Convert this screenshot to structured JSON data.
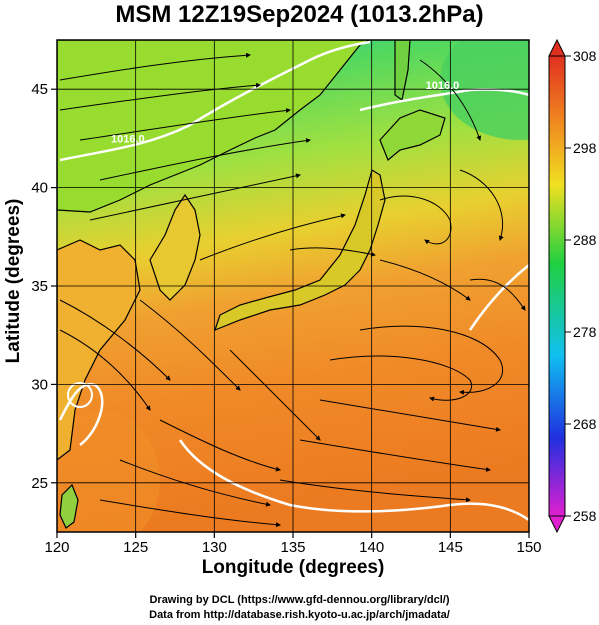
{
  "title": "MSM 12Z19Sep2024 (1013.2hPa)",
  "x_axis": {
    "label": "Longitude (degrees)",
    "range": [
      120,
      150
    ],
    "ticks": [
      "120",
      "125",
      "130",
      "135",
      "140",
      "145",
      "150"
    ]
  },
  "y_axis": {
    "label": "Latitude  (degrees)",
    "range": [
      22.5,
      47.5
    ],
    "ticks": [
      "25",
      "30",
      "35",
      "40",
      "45"
    ]
  },
  "colorbar": {
    "ticks": [
      "258",
      "268",
      "278",
      "288",
      "298",
      "308"
    ],
    "min": 258,
    "max": 308,
    "colors": [
      "#e020d0",
      "#2030e0",
      "#10c0f0",
      "#20d040",
      "#f0e020",
      "#f08020",
      "#e03020"
    ]
  },
  "contour_labels": [
    {
      "text": "1016.0",
      "lon": 124.5,
      "lat": 42.3
    },
    {
      "text": "1016.0",
      "lon": 144.5,
      "lat": 45.0
    }
  ],
  "credits": {
    "line1": "Drawing by DCL (https://www.gfd-dennou.org/library/dcl/)",
    "line2": "Data from http://database.rish.kyoto-u.ac.jp/arch/jmadata/"
  }
}
